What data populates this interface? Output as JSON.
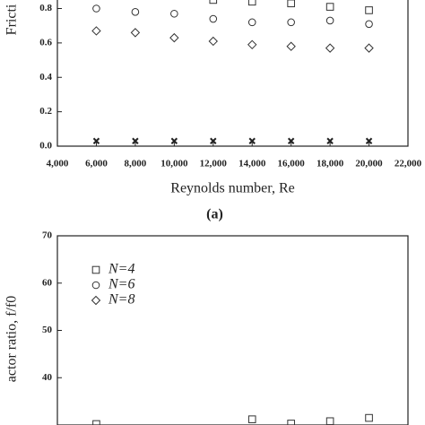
{
  "chart_data": [
    {
      "type": "scatter",
      "ylabel": "Fricti",
      "xlabel": "Reynolds number, Re",
      "caption": "(a)",
      "x": [
        6000,
        8000,
        10000,
        12000,
        14000,
        16000,
        18000,
        20000
      ],
      "xlim": [
        4000,
        22000
      ],
      "xticks": [
        {
          "value": 4000,
          "label": "4,000"
        },
        {
          "value": 6000,
          "label": "6,000"
        },
        {
          "value": 8000,
          "label": "8,000"
        },
        {
          "value": 10000,
          "label": "10,000"
        },
        {
          "value": 12000,
          "label": "12,000"
        },
        {
          "value": 14000,
          "label": "14,000"
        },
        {
          "value": 16000,
          "label": "16,000"
        },
        {
          "value": 18000,
          "label": "18,000"
        },
        {
          "value": 20000,
          "label": "20,000"
        },
        {
          "value": 22000,
          "label": "22,000"
        }
      ],
      "ylim": [
        0,
        0.86
      ],
      "yticks": [
        {
          "value": 0,
          "label": "0.0"
        },
        0.2,
        0.4,
        0.6,
        0.8
      ],
      "series": [
        {
          "marker": "square",
          "color": "#333333",
          "values": [
            null,
            null,
            null,
            0.85,
            0.84,
            0.83,
            0.81,
            0.79
          ]
        },
        {
          "marker": "circle",
          "color": "#333333",
          "values": [
            0.8,
            0.78,
            0.77,
            0.74,
            0.72,
            0.72,
            0.73,
            0.71
          ]
        },
        {
          "marker": "diamond",
          "color": "#333333",
          "values": [
            0.67,
            0.66,
            0.63,
            0.61,
            0.59,
            0.58,
            0.57,
            0.57
          ]
        },
        {
          "marker": "cross",
          "color": "#222222",
          "values": [
            0.03,
            0.03,
            0.03,
            0.03,
            0.03,
            0.03,
            0.03,
            0.03
          ]
        }
      ]
    },
    {
      "type": "scatter",
      "ylabel": "actor ratio, f/f0",
      "x": [
        6000,
        8000,
        10000,
        12000,
        14000,
        16000,
        18000,
        20000
      ],
      "xlim": [
        4000,
        22000
      ],
      "ylim": [
        30,
        70
      ],
      "yticks": [
        40,
        50,
        60,
        70
      ],
      "series": [
        {
          "name": "N=4",
          "marker": "square",
          "color": "#333333",
          "values": [
            30.2,
            null,
            null,
            null,
            31.2,
            30.3,
            30.8,
            31.5
          ]
        },
        {
          "name": "N=6",
          "marker": "circle",
          "color": "#333333",
          "values": [
            null,
            null,
            null,
            null,
            null,
            null,
            null,
            null
          ]
        },
        {
          "name": "N=8",
          "marker": "diamond",
          "color": "#333333",
          "values": [
            null,
            null,
            null,
            null,
            null,
            null,
            null,
            null
          ]
        }
      ]
    }
  ]
}
